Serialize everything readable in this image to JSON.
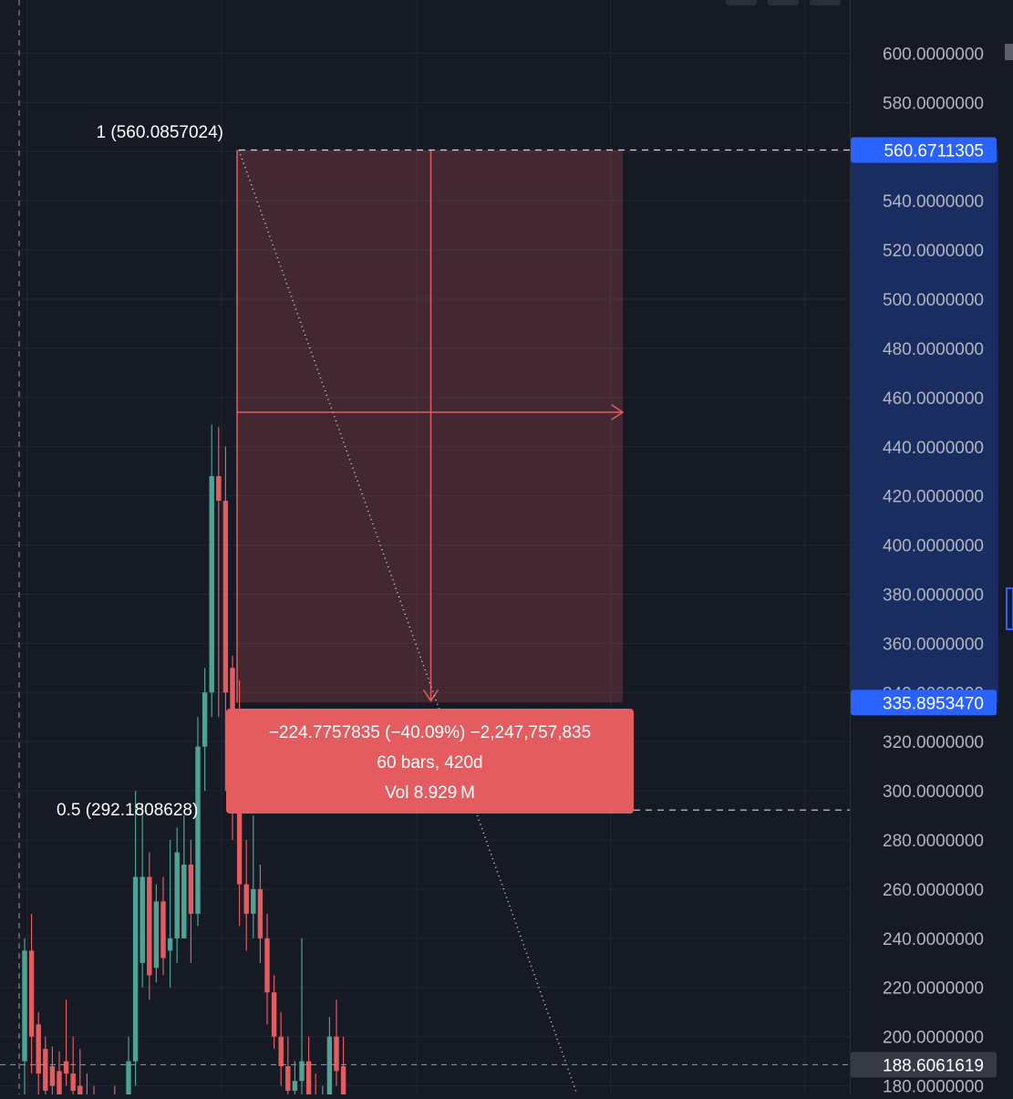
{
  "chart_data": {
    "type": "candlestick",
    "ylim": [
      176.5,
      621.7
    ],
    "y_ticks": [
      "180.0000000",
      "200.0000000",
      "220.0000000",
      "240.0000000",
      "260.0000000",
      "280.0000000",
      "300.0000000",
      "320.0000000",
      "340.0000000",
      "360.0000000",
      "380.0000000",
      "400.0000000",
      "420.0000000",
      "440.0000000",
      "460.0000000",
      "480.0000000",
      "500.0000000",
      "520.0000000",
      "540.0000000",
      "560.0000000",
      "580.0000000",
      "600.0000000"
    ],
    "price_badges": [
      {
        "label": "560.6711305",
        "value": 560.6711305,
        "color": "#2962ff"
      },
      {
        "label": "335.8953470",
        "value": 335.895347,
        "color": "#2962ff"
      },
      {
        "label": "188.6061619",
        "value": 188.6061619,
        "color": "#363a45"
      }
    ],
    "fib_levels": [
      {
        "label": "1 (560.0857024)",
        "value": 560.0857024
      },
      {
        "label": "0.5 (292.1808628)",
        "value": 292.1808628
      }
    ],
    "crosshair_price": 188.6061619,
    "measure": {
      "from_price": 560.6711305,
      "to_price": 335.895347,
      "change_text": "−224.7757835 (−40.09%) −2,247,757,835",
      "bars_text": "60 bars, 420d",
      "vol_text": "Vol 8.929 M",
      "fill_color": "#e45c60"
    },
    "candles": [
      {
        "o": 190,
        "h": 240,
        "l": 170,
        "c": 235
      },
      {
        "o": 235,
        "h": 250,
        "l": 185,
        "c": 200
      },
      {
        "o": 205,
        "h": 210,
        "l": 175,
        "c": 185
      },
      {
        "o": 195,
        "h": 200,
        "l": 170,
        "c": 178
      },
      {
        "o": 188,
        "h": 196,
        "l": 175,
        "c": 180
      },
      {
        "o": 186,
        "h": 194,
        "l": 170,
        "c": 176
      },
      {
        "o": 190,
        "h": 215,
        "l": 180,
        "c": 185
      },
      {
        "o": 185,
        "h": 200,
        "l": 170,
        "c": 178
      },
      {
        "o": 180,
        "h": 195,
        "l": 165,
        "c": 172
      },
      {
        "o": 172,
        "h": 185,
        "l": 160,
        "c": 168
      },
      {
        "o": 168,
        "h": 180,
        "l": 155,
        "c": 165
      },
      {
        "o": 165,
        "h": 175,
        "l": 150,
        "c": 160
      },
      {
        "o": 160,
        "h": 172,
        "l": 148,
        "c": 166
      },
      {
        "o": 166,
        "h": 180,
        "l": 150,
        "c": 158
      },
      {
        "o": 158,
        "h": 176,
        "l": 150,
        "c": 170
      },
      {
        "o": 170,
        "h": 200,
        "l": 160,
        "c": 190
      },
      {
        "o": 190,
        "h": 300,
        "l": 180,
        "c": 265
      },
      {
        "o": 230,
        "h": 295,
        "l": 220,
        "c": 265
      },
      {
        "o": 265,
        "h": 275,
        "l": 215,
        "c": 225
      },
      {
        "o": 228,
        "h": 262,
        "l": 222,
        "c": 255
      },
      {
        "o": 255,
        "h": 265,
        "l": 225,
        "c": 232
      },
      {
        "o": 235,
        "h": 280,
        "l": 220,
        "c": 240
      },
      {
        "o": 240,
        "h": 285,
        "l": 230,
        "c": 275
      },
      {
        "o": 240,
        "h": 290,
        "l": 240,
        "c": 270
      },
      {
        "o": 270,
        "h": 280,
        "l": 230,
        "c": 250
      },
      {
        "o": 250,
        "h": 330,
        "l": 245,
        "c": 318
      },
      {
        "o": 318,
        "h": 350,
        "l": 300,
        "c": 340
      },
      {
        "o": 340,
        "h": 449,
        "l": 330,
        "c": 428
      },
      {
        "o": 428,
        "h": 448,
        "l": 330,
        "c": 418
      },
      {
        "o": 418,
        "h": 440,
        "l": 300,
        "c": 340
      },
      {
        "o": 350,
        "h": 355,
        "l": 280,
        "c": 300
      },
      {
        "o": 300,
        "h": 345,
        "l": 245,
        "c": 262
      },
      {
        "o": 262,
        "h": 280,
        "l": 235,
        "c": 250
      },
      {
        "o": 250,
        "h": 290,
        "l": 240,
        "c": 260
      },
      {
        "o": 260,
        "h": 270,
        "l": 230,
        "c": 240
      },
      {
        "o": 240,
        "h": 250,
        "l": 205,
        "c": 218
      },
      {
        "o": 218,
        "h": 225,
        "l": 195,
        "c": 200
      },
      {
        "o": 200,
        "h": 210,
        "l": 180,
        "c": 188
      },
      {
        "o": 188,
        "h": 200,
        "l": 170,
        "c": 178
      },
      {
        "o": 178,
        "h": 190,
        "l": 165,
        "c": 182
      },
      {
        "o": 182,
        "h": 240,
        "l": 170,
        "c": 190
      },
      {
        "o": 190,
        "h": 200,
        "l": 165,
        "c": 170
      },
      {
        "o": 170,
        "h": 185,
        "l": 155,
        "c": 165
      },
      {
        "o": 165,
        "h": 180,
        "l": 150,
        "c": 175
      },
      {
        "o": 175,
        "h": 208,
        "l": 165,
        "c": 200
      },
      {
        "o": 200,
        "h": 215,
        "l": 180,
        "c": 186
      },
      {
        "o": 188,
        "h": 200,
        "l": 170,
        "c": 176
      }
    ]
  }
}
